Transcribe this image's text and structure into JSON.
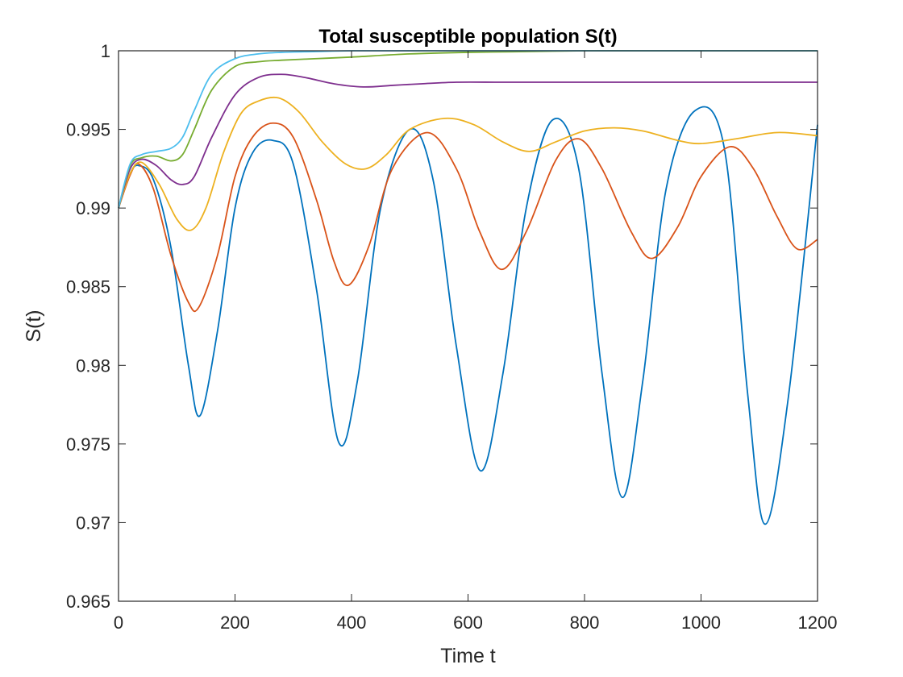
{
  "chart_data": {
    "type": "line",
    "title": "Total susceptible population S(t)",
    "xlabel": "Time t",
    "ylabel": "S(t)",
    "xlim": [
      0,
      1200
    ],
    "ylim": [
      0.965,
      1.0
    ],
    "xticks": [
      0,
      200,
      400,
      600,
      800,
      1000,
      1200
    ],
    "xtick_labels": [
      "0",
      "200",
      "400",
      "600",
      "800",
      "1000",
      "1200"
    ],
    "yticks": [
      0.965,
      0.97,
      0.975,
      0.98,
      0.985,
      0.99,
      0.995,
      1.0
    ],
    "ytick_labels": [
      "0.965",
      "0.97",
      "0.975",
      "0.98",
      "0.985",
      "0.99",
      "0.995",
      "1"
    ],
    "grid": false,
    "legend": "none",
    "series": [
      {
        "name": "series-1",
        "color": "#0072BD",
        "x": [
          0,
          20,
          35,
          60,
          90,
          120,
          140,
          170,
          200,
          230,
          265,
          300,
          340,
          378,
          410,
          450,
          500,
          540,
          580,
          621,
          660,
          700,
          745,
          790,
          830,
          865,
          900,
          940,
          990,
          1040,
          1080,
          1110,
          1150,
          1200
        ],
        "y": [
          0.99,
          0.9922,
          0.9927,
          0.9918,
          0.9875,
          0.98,
          0.9768,
          0.9822,
          0.99,
          0.9935,
          0.9943,
          0.9928,
          0.9848,
          0.9751,
          0.979,
          0.99,
          0.995,
          0.9918,
          0.9812,
          0.9733,
          0.9795,
          0.99,
          0.9956,
          0.9925,
          0.9795,
          0.9716,
          0.979,
          0.9912,
          0.9962,
          0.9938,
          0.9782,
          0.9699,
          0.978,
          0.9953
        ]
      },
      {
        "name": "series-2",
        "color": "#D95319",
        "x": [
          0,
          20,
          35,
          60,
          90,
          120,
          138,
          170,
          200,
          230,
          265,
          300,
          340,
          370,
          395,
          430,
          470,
          530,
          580,
          620,
          658,
          700,
          750,
          790,
          830,
          880,
          916,
          960,
          1000,
          1050,
          1090,
          1130,
          1165,
          1200
        ],
        "y": [
          0.99,
          0.9921,
          0.9928,
          0.9912,
          0.987,
          0.984,
          0.9837,
          0.987,
          0.992,
          0.9945,
          0.9954,
          0.9945,
          0.9905,
          0.9866,
          0.9851,
          0.9876,
          0.9925,
          0.9948,
          0.9925,
          0.9885,
          0.9861,
          0.9885,
          0.993,
          0.9944,
          0.9925,
          0.9885,
          0.9868,
          0.9888,
          0.992,
          0.9939,
          0.9925,
          0.9895,
          0.9874,
          0.988
        ]
      },
      {
        "name": "series-3",
        "color": "#EDB120",
        "x": [
          0,
          20,
          40,
          70,
          100,
          125,
          150,
          180,
          210,
          240,
          275,
          310,
          350,
          390,
          425,
          460,
          500,
          560,
          610,
          660,
          705,
          750,
          800,
          850,
          900,
          960,
          1000,
          1060,
          1130,
          1200
        ],
        "y": [
          0.99,
          0.9922,
          0.9929,
          0.9915,
          0.9893,
          0.9886,
          0.99,
          0.9935,
          0.996,
          0.9968,
          0.997,
          0.9961,
          0.9942,
          0.9928,
          0.9925,
          0.9934,
          0.995,
          0.9957,
          0.9953,
          0.9942,
          0.9936,
          0.9942,
          0.9949,
          0.9951,
          0.9949,
          0.9943,
          0.9941,
          0.9944,
          0.9948,
          0.9946
        ]
      },
      {
        "name": "series-4",
        "color": "#7E2F8E",
        "x": [
          0,
          20,
          40,
          65,
          90,
          110,
          130,
          160,
          200,
          240,
          280,
          320,
          370,
          420,
          470,
          520,
          580,
          650,
          700,
          800,
          900,
          1000,
          1100,
          1200
        ],
        "y": [
          0.99,
          0.9925,
          0.9931,
          0.9927,
          0.9918,
          0.9915,
          0.992,
          0.9945,
          0.9972,
          0.9983,
          0.9985,
          0.9983,
          0.9979,
          0.9977,
          0.9978,
          0.9979,
          0.998,
          0.998,
          0.998,
          0.998,
          0.998,
          0.998,
          0.998,
          0.998
        ]
      },
      {
        "name": "series-5",
        "color": "#77AC30",
        "x": [
          0,
          20,
          40,
          65,
          90,
          110,
          130,
          160,
          200,
          240,
          280,
          340,
          400,
          500,
          600,
          700,
          800,
          900,
          1000,
          1100,
          1200
        ],
        "y": [
          0.99,
          0.9927,
          0.9932,
          0.9933,
          0.993,
          0.9934,
          0.995,
          0.9975,
          0.999,
          0.9993,
          0.9994,
          0.9995,
          0.9996,
          0.9998,
          0.9999,
          0.99995,
          1.0,
          1.0,
          1.0,
          1.0,
          1.0
        ]
      },
      {
        "name": "series-6",
        "color": "#4DBEEE",
        "x": [
          0,
          20,
          40,
          65,
          90,
          110,
          130,
          160,
          200,
          240,
          280,
          340,
          400,
          500,
          600,
          700,
          800,
          900,
          1000,
          1100,
          1200
        ],
        "y": [
          0.99,
          0.9928,
          0.9934,
          0.9936,
          0.9938,
          0.9945,
          0.9962,
          0.9985,
          0.9995,
          0.9998,
          0.9999,
          0.99995,
          1.0,
          1.0,
          1.0,
          1.0,
          1.0,
          1.0,
          1.0,
          1.0,
          1.0
        ]
      }
    ]
  }
}
